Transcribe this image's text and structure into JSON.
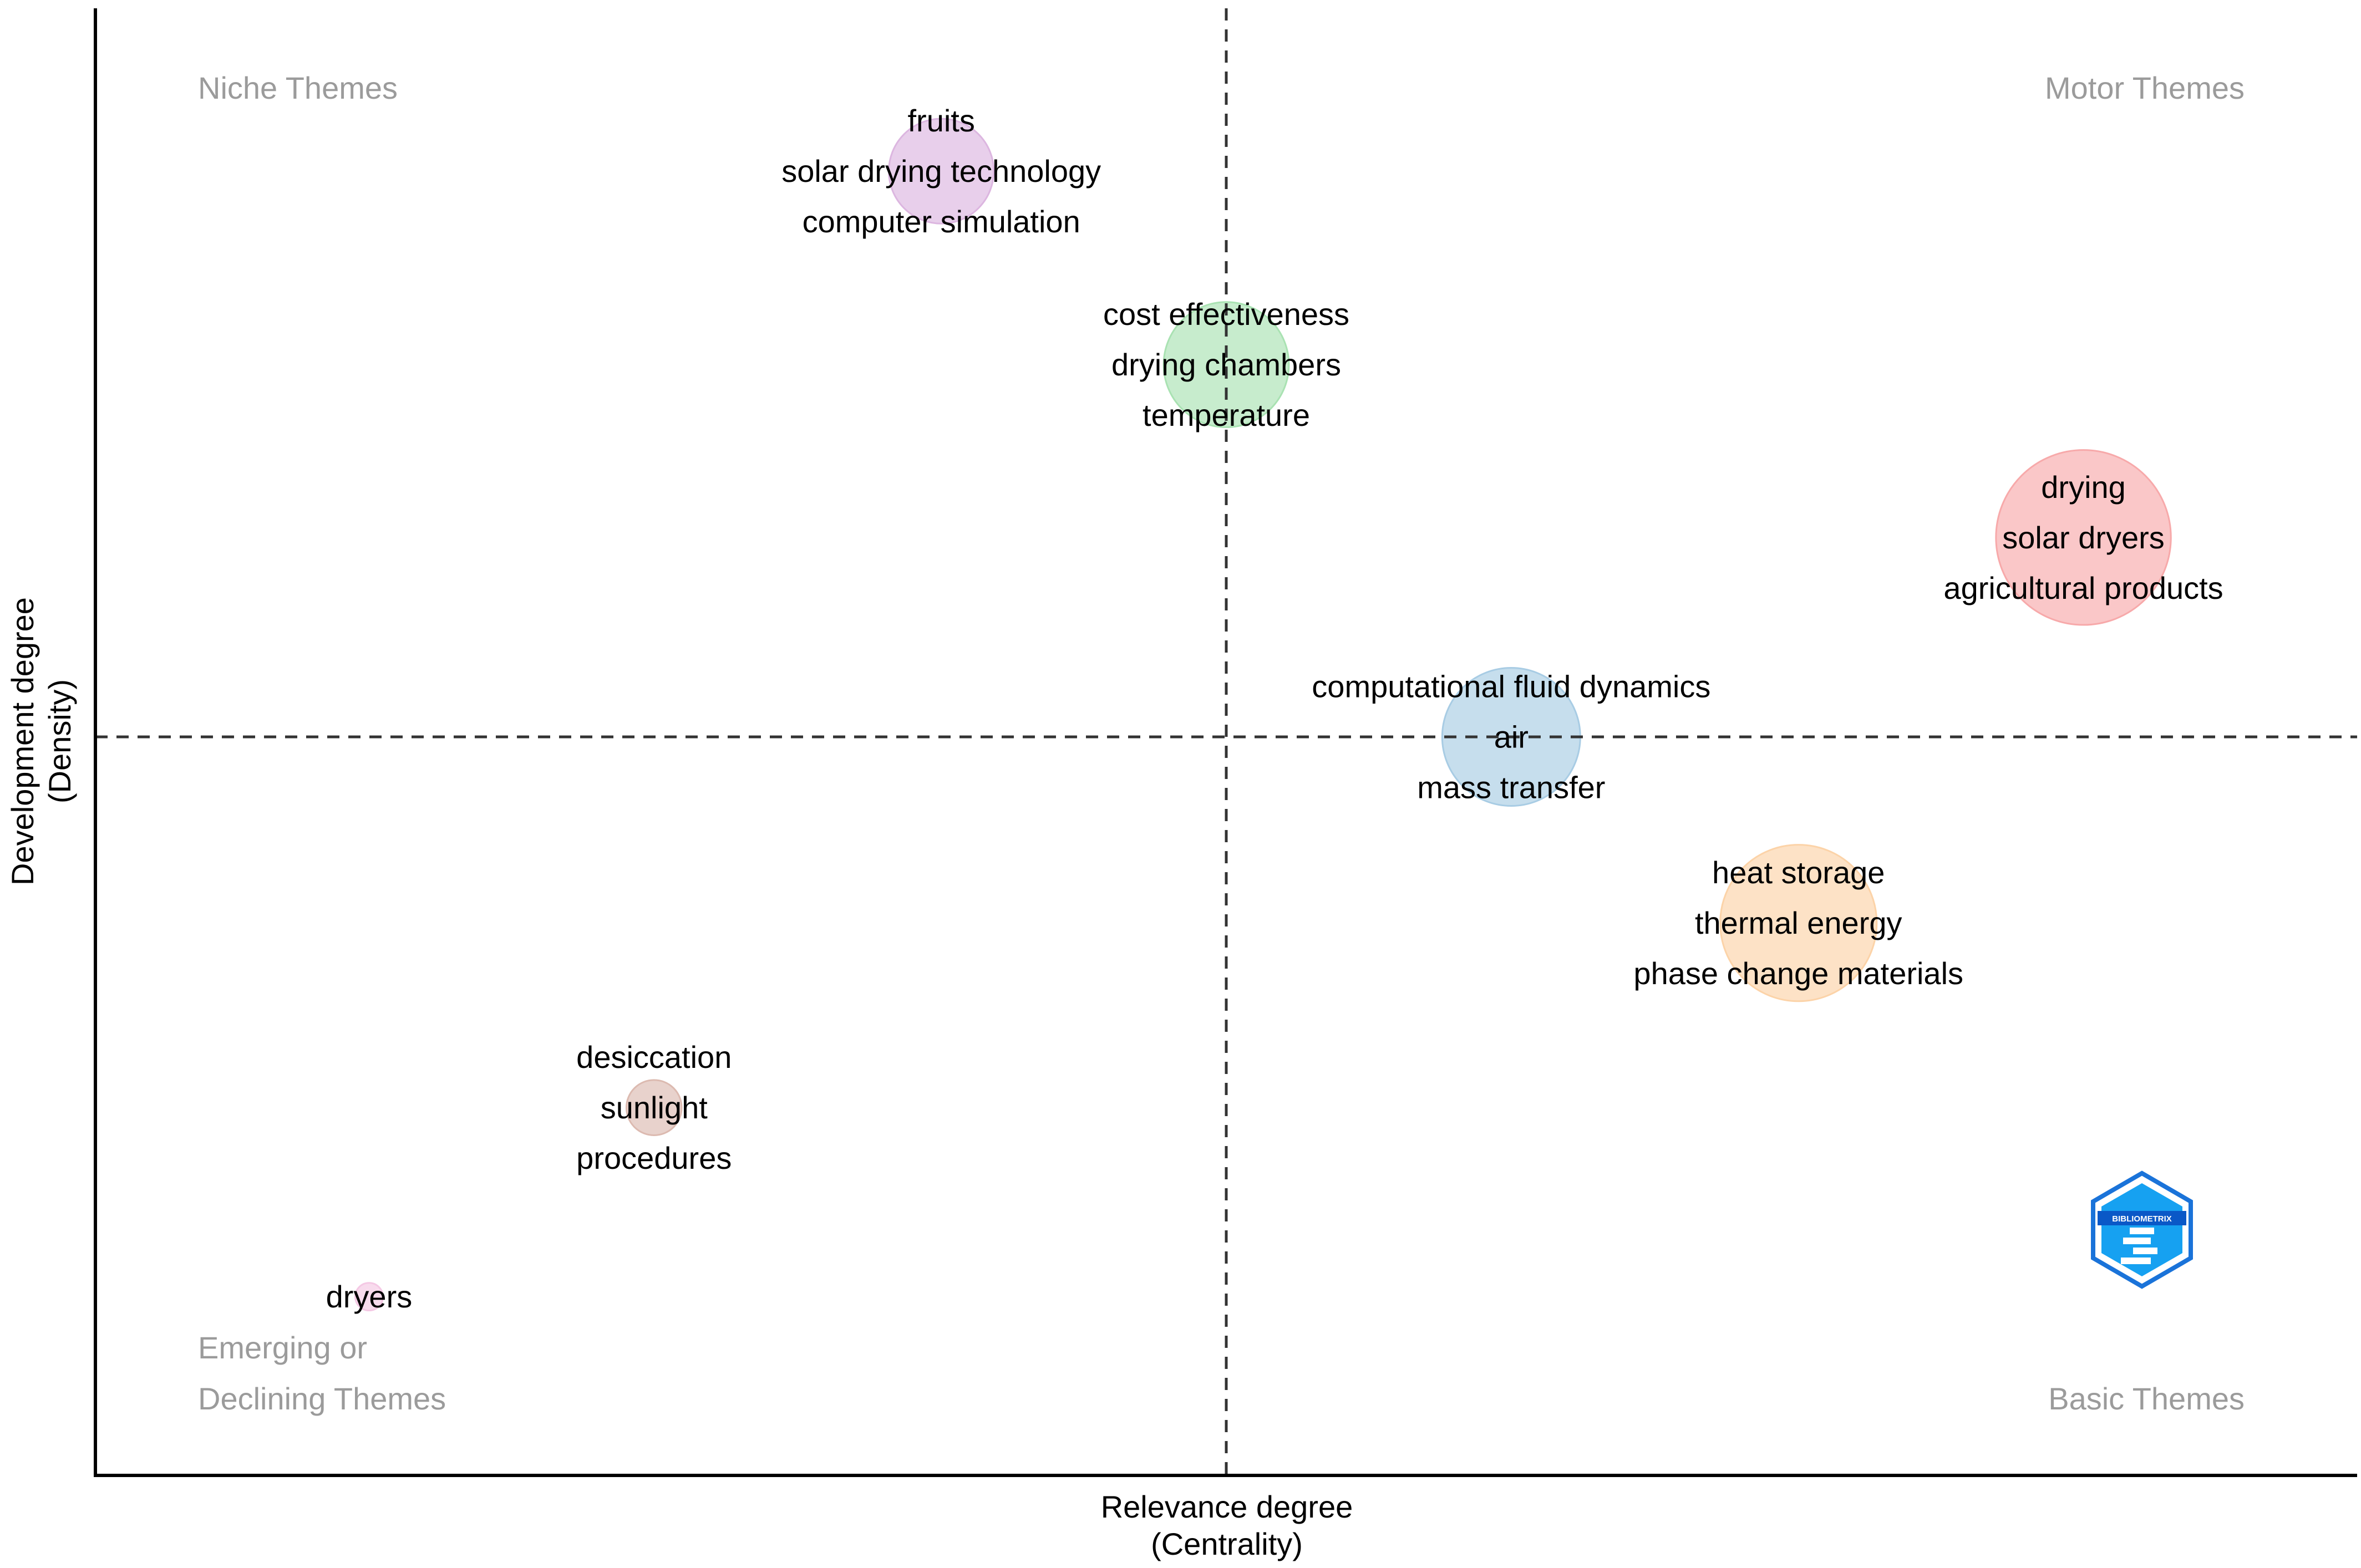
{
  "chart_data": {
    "type": "scatter",
    "title": "",
    "xlabel": "Relevance degree",
    "xlabel_sub": "(Centrality)",
    "ylabel": "Development degree",
    "ylabel_sub": "(Density)",
    "xlim": [
      0,
      100
    ],
    "ylim": [
      0,
      100
    ],
    "x_divider": 50,
    "y_divider": 50,
    "grid": false,
    "quadrants": {
      "top_left": [
        "Niche Themes"
      ],
      "top_right": [
        "Motor Themes"
      ],
      "bottom_left": [
        "Emerging or",
        "Declining Themes"
      ],
      "bottom_right": [
        "Basic Themes"
      ]
    },
    "clusters": [
      {
        "x": 37.4,
        "y": 88.3,
        "size": 5.7,
        "color": "#dcb6e0",
        "labels": [
          "fruits",
          "solar drying technology",
          "computer simulation"
        ]
      },
      {
        "x": 50.0,
        "y": 75.2,
        "size": 6.8,
        "color": "#a9e2b2",
        "labels": [
          "cost effectiveness",
          "drying chambers",
          "temperature"
        ]
      },
      {
        "x": 87.9,
        "y": 63.5,
        "size": 9.5,
        "color": "#f7a9aa",
        "labels": [
          "drying",
          "solar dryers",
          "agricultural products"
        ]
      },
      {
        "x": 62.6,
        "y": 50.0,
        "size": 7.5,
        "color": "#a8cce4",
        "labels": [
          "computational fluid dynamics",
          "air",
          "mass transfer"
        ]
      },
      {
        "x": 75.3,
        "y": 37.4,
        "size": 8.5,
        "color": "#fcd3a8",
        "labels": [
          "heat storage",
          "thermal energy",
          "phase change materials"
        ]
      },
      {
        "x": 24.7,
        "y": 24.9,
        "size": 3.0,
        "color": "#dcbab0",
        "labels": [
          "desiccation",
          "sunlight",
          "procedures"
        ]
      },
      {
        "x": 12.1,
        "y": 12.1,
        "size": 1.5,
        "color": "#f4c8e4",
        "labels": [
          "dryers"
        ]
      }
    ],
    "logo_text": "BIBLIOMETRIX"
  }
}
